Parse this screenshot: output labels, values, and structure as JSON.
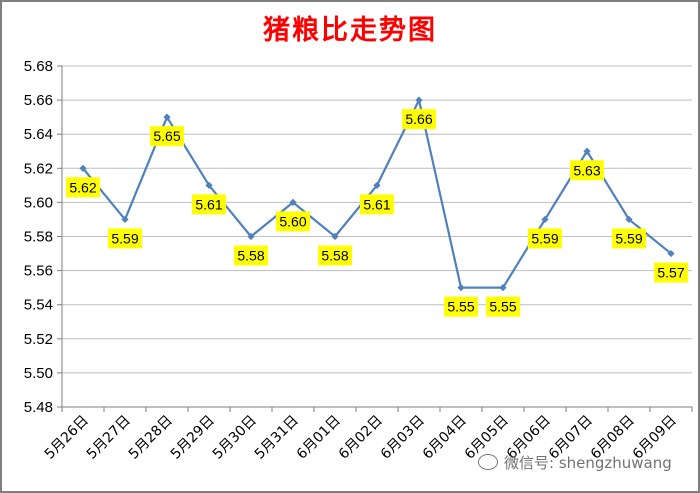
{
  "chart_data": {
    "type": "line",
    "title": "猪粮比走势图",
    "categories": [
      "5月26日",
      "5月27日",
      "5月28日",
      "5月29日",
      "5月30日",
      "5月31日",
      "6月01日",
      "6月02日",
      "6月03日",
      "6月04日",
      "6月05日",
      "6月06日",
      "6月07日",
      "6月08日",
      "6月09日"
    ],
    "values": [
      5.62,
      5.59,
      5.65,
      5.61,
      5.58,
      5.6,
      5.58,
      5.61,
      5.66,
      5.55,
      5.55,
      5.59,
      5.63,
      5.59,
      5.57
    ],
    "value_labels": [
      "5.62",
      "5.59",
      "5.65",
      "5.61",
      "5.58",
      "5.60",
      "5.58",
      "5.61",
      "5.66",
      "5.55",
      "5.55",
      "5.59",
      "5.63",
      "5.59",
      "5.57"
    ],
    "ylim": [
      5.48,
      5.68
    ],
    "yticks": [
      "5.48",
      "5.50",
      "5.52",
      "5.54",
      "5.56",
      "5.58",
      "5.60",
      "5.62",
      "5.64",
      "5.66",
      "5.68"
    ],
    "grid": true,
    "legend": "none",
    "line_color": "#4f81bd",
    "label_bg_color": "#ffff00",
    "title_color": "#ff0000"
  },
  "watermark": {
    "icon": "wechat-icon",
    "text": "微信号: shengzhuwang"
  }
}
